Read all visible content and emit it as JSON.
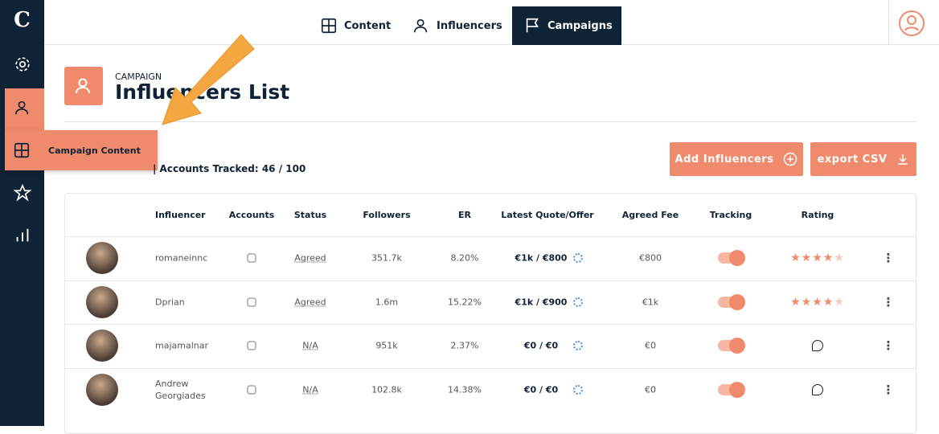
{
  "logo": "C",
  "nav": [
    "Content",
    "Influencers",
    "Campaigns"
  ],
  "tooltip": "Campaign Content",
  "header": {
    "overline": "CAMPAIGN",
    "title": "Influencers List",
    "summary": "| Accounts Tracked: 46 / 100"
  },
  "buttons": [
    "Add Influencers",
    "export CSV"
  ],
  "table": {
    "columns": [
      "Influencer",
      "Accounts",
      "Status",
      "Followers",
      "ER",
      "Latest Quote/Offer",
      "Agreed Fee",
      "Tracking",
      "Rating"
    ],
    "rows": [
      {
        "influencer": "romaneinnc",
        "status": "Agreed",
        "followers": "351.7k",
        "er": "8.20%",
        "quote": "€1k / €800",
        "fee": "€800",
        "rating": 4
      },
      {
        "influencer": "Dprian",
        "status": "Agreed",
        "followers": "1.6m",
        "er": "15.22%",
        "quote": "€1k / €900",
        "fee": "€1k",
        "rating": 4
      },
      {
        "influencer": "majamalnar",
        "status": "N/A",
        "followers": "951k",
        "er": "2.37%",
        "quote": "€0 / €0",
        "fee": "€0"
      },
      {
        "influencer": "Andrew Georgiades",
        "status": "N/A",
        "followers": "102.8k",
        "er": "14.38%",
        "quote": "€0 / €0",
        "fee": "€0"
      }
    ]
  }
}
